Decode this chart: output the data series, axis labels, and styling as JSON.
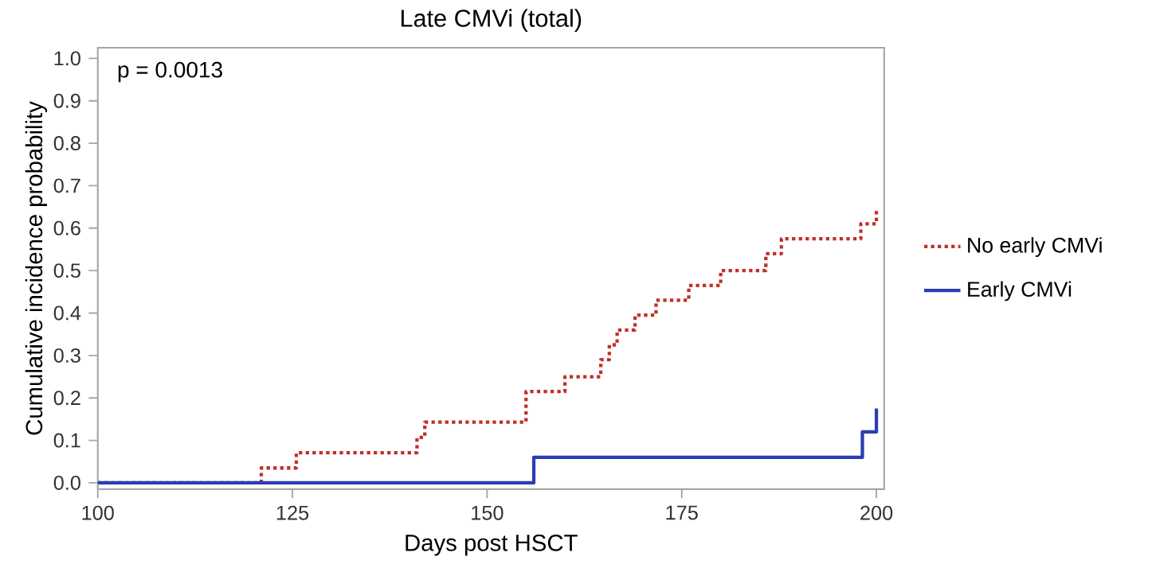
{
  "chart_data": {
    "type": "step",
    "title": "Late CMVi (total)",
    "xlabel": "Days post HSCT",
    "ylabel": "Cumulative incidence probability",
    "annotations": [
      "p = 0.0013"
    ],
    "xlim": [
      100,
      201
    ],
    "ylim": [
      -0.015,
      1.025
    ],
    "xticks": [
      100,
      125,
      150,
      175,
      200
    ],
    "yticks": [
      {
        "value": 0,
        "label": "0.0"
      },
      {
        "value": 0.1,
        "label": "0.1"
      },
      {
        "value": 0.2,
        "label": "0.2"
      },
      {
        "value": 0.3,
        "label": "0.3"
      },
      {
        "value": 0.4,
        "label": "0.4"
      },
      {
        "value": 0.5,
        "label": "0.5"
      },
      {
        "value": 0.6,
        "label": "0.6"
      },
      {
        "value": 0.7,
        "label": "0.7"
      },
      {
        "value": 0.8,
        "label": "0.8"
      },
      {
        "value": 0.9,
        "label": "0.9"
      },
      {
        "value": 1.0,
        "label": "1.0"
      }
    ],
    "grid": false,
    "legend": "right",
    "series": [
      {
        "name": "No early CMVi",
        "color": "#c0302a",
        "line_style": "dotted",
        "x": [
          100,
          121,
          125.5,
          141,
          142,
          155,
          160,
          164.6,
          165.7,
          166.7,
          169,
          171.7,
          175.9,
          180,
          185.8,
          187.8,
          198,
          200
        ],
        "values": [
          0,
          0.035,
          0.071,
          0.107,
          0.143,
          0.215,
          0.25,
          0.29,
          0.325,
          0.36,
          0.395,
          0.43,
          0.465,
          0.5,
          0.54,
          0.575,
          0.61,
          0.645
        ]
      },
      {
        "name": "Early CMVi",
        "color": "#2b3db5",
        "line_style": "solid",
        "x": [
          100,
          156,
          198.2,
          200
        ],
        "values": [
          0,
          0.06,
          0.12,
          0.175
        ]
      }
    ]
  }
}
